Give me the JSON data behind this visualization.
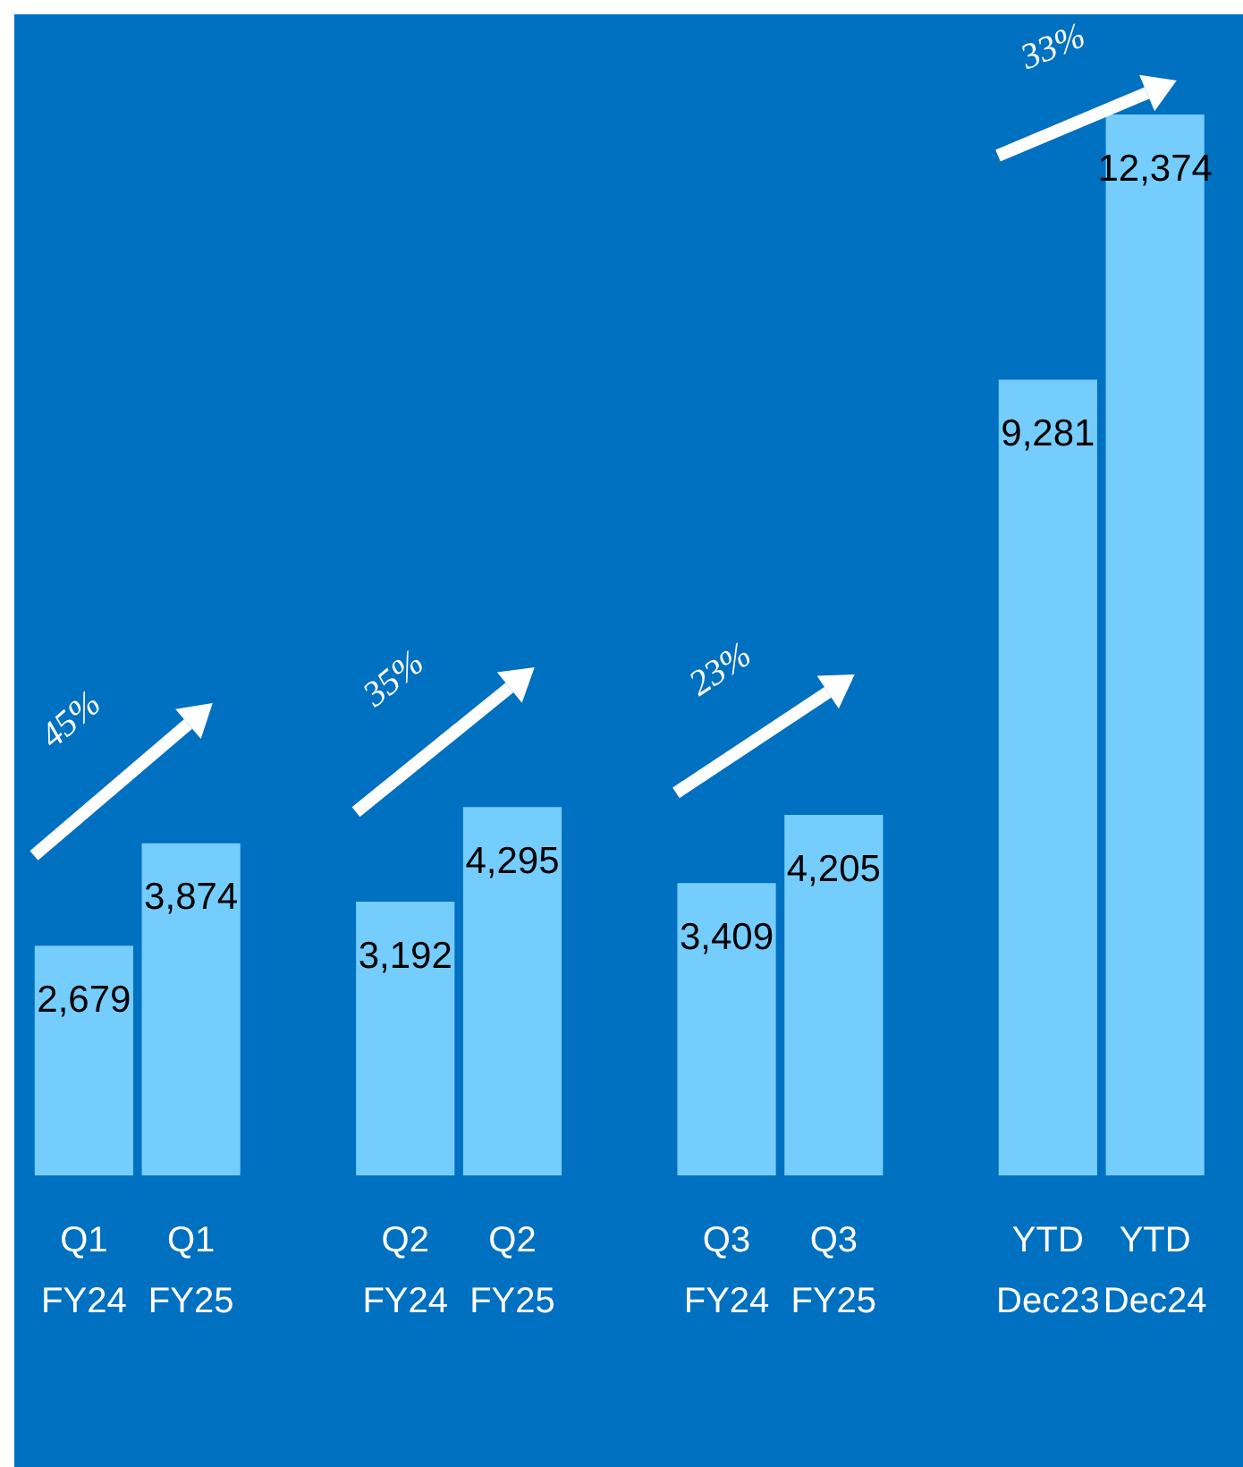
{
  "chart_data": {
    "type": "bar",
    "categories": [
      "Q1 FY24",
      "Q1 FY25",
      null,
      "Q2 FY24",
      "Q2 FY25",
      null,
      "Q3 FY24",
      "Q3 FY25",
      null,
      "YTD Dec23",
      "YTD Dec24"
    ],
    "values": [
      2679,
      3874,
      null,
      3192,
      4295,
      null,
      3409,
      4205,
      null,
      9281,
      12374
    ],
    "color": "#75cdfd",
    "value_labels": [
      "2,679",
      "3,874",
      null,
      "3,192",
      "4,295",
      null,
      "3,409",
      "4,205",
      null,
      "9,281",
      "12,374"
    ],
    "tick_labels": "x",
    "grid": false,
    "legend": false,
    "annotations": [
      "45%",
      "35%",
      "23%",
      "33%"
    ]
  }
}
